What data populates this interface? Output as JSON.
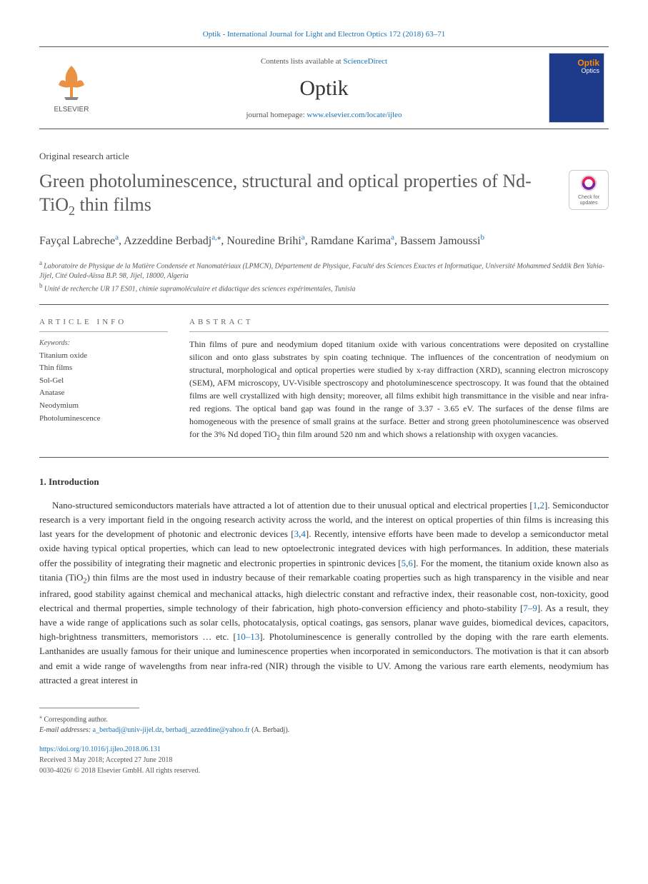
{
  "citation": "Optik - International Journal for Light and Electron Optics 172 (2018) 63–71",
  "header": {
    "contents_prefix": "Contents lists available at ",
    "contents_link": "ScienceDirect",
    "journal_name": "Optik",
    "homepage_prefix": "journal homepage: ",
    "homepage_url": "www.elsevier.com/locate/ijleo",
    "publisher_logo_text": "ELSEVIER",
    "cover_title": "Optik",
    "cover_sub": "Optics"
  },
  "article_type": "Original research article",
  "title_pre": "Green photoluminescence, structural and optical properties of Nd-TiO",
  "title_sub": "2",
  "title_post": " thin films",
  "check_updates_label": "Check for updates",
  "authors": [
    {
      "name": "Fayçal Labreche",
      "aff": "a"
    },
    {
      "name": "Azzeddine Berbadj",
      "aff": "a",
      "corresponding": true
    },
    {
      "name": "Nouredine Brihi",
      "aff": "a"
    },
    {
      "name": "Ramdane Karima",
      "aff": "a"
    },
    {
      "name": "Bassem Jamoussi",
      "aff": "b"
    }
  ],
  "affiliations": [
    {
      "key": "a",
      "text": "Laboratoire de Physique de la Matière Condensée et Nanomatériaux (LPMCN), Département de Physique, Faculté des Sciences Exactes et Informatique, Université Mohammed Seddik Ben Yahia-Jijel, Cité Ouled-Aïssa B.P. 98, Jijel, 18000, Algeria"
    },
    {
      "key": "b",
      "text": "Unité de recherche UR 17 ES01, chimie supramoléculaire et didactique des sciences expérimentales, Tunisia"
    }
  ],
  "article_info_label": "ARTICLE INFO",
  "abstract_label": "ABSTRACT",
  "keywords_label": "Keywords:",
  "keywords": [
    "Titanium oxide",
    "Thin films",
    "Sol-Gel",
    "Anatase",
    "Neodymium",
    "Photoluminescence"
  ],
  "abstract_html": "Thin films of pure and neodymium doped titanium oxide with various concentrations were deposited on crystalline silicon and onto glass substrates by spin coating technique. The influences of the concentration of neodymium on structural, morphological and optical properties were studied by x-ray diffraction (XRD), scanning electron microscopy (SEM), AFM microscopy, UV-Visible spectroscopy and photoluminescence spectroscopy. It was found that the obtained films are well crystallized with high density; moreover, all films exhibit high transmittance in the visible and near infra-red regions. The optical band gap was found in the range of 3.37 - 3.65 eV. The surfaces of the dense films are homogeneous with the presence of small grains at the surface. Better and strong green photoluminescence was observed for the 3% Nd doped TiO<sub>2</sub> thin film around 520 nm and which shows a relationship with oxygen vacancies.",
  "introduction": {
    "heading": "1. Introduction",
    "body_spans": [
      {
        "t": "text",
        "v": "Nano-structured semiconductors materials have attracted a lot of attention due to their unusual optical and electrical properties ["
      },
      {
        "t": "ref",
        "v": "1"
      },
      {
        "t": "text",
        "v": ","
      },
      {
        "t": "ref",
        "v": "2"
      },
      {
        "t": "text",
        "v": "]. Semiconductor research is a very important field in the ongoing research activity across the world, and the interest on optical properties of thin films is increasing this last years for the development of photonic and electronic devices ["
      },
      {
        "t": "ref",
        "v": "3"
      },
      {
        "t": "text",
        "v": ","
      },
      {
        "t": "ref",
        "v": "4"
      },
      {
        "t": "text",
        "v": "]. Recently, intensive efforts have been made to develop a semiconductor metal oxide having typical optical properties, which can lead to new optoelectronic integrated devices with high performances. In addition, these materials offer the possibility of integrating their magnetic and electronic properties in spintronic devices ["
      },
      {
        "t": "ref",
        "v": "5"
      },
      {
        "t": "text",
        "v": ","
      },
      {
        "t": "ref",
        "v": "6"
      },
      {
        "t": "text",
        "v": "]. For the moment, the titanium oxide known also as titania (TiO"
      },
      {
        "t": "sub",
        "v": "2"
      },
      {
        "t": "text",
        "v": ") thin films are the most used in industry because of their remarkable coating properties such as high transparency in the visible and near infrared, good stability against chemical and mechanical attacks, high dielectric constant and refractive index, their reasonable cost, non-toxicity, good electrical and thermal properties, simple technology of their fabrication, high photo-conversion efficiency and photo-stability ["
      },
      {
        "t": "ref",
        "v": "7–9"
      },
      {
        "t": "text",
        "v": "]. As a result, they have a wide range of applications such as solar cells, photocatalysis, optical coatings, gas sensors, planar wave guides, biomedical devices, capacitors, high-brightness transmitters, memoristors … etc. ["
      },
      {
        "t": "ref",
        "v": "10–13"
      },
      {
        "t": "text",
        "v": "]. Photoluminescence is generally controlled by the doping with the rare earth elements. Lanthanides are usually famous for their unique and luminescence properties when incorporated in semiconductors. The motivation is that it can absorb and emit a wide range of wavelengths from near infra-red (NIR) through the visible to UV. Among the various rare earth elements, neodymium has attracted a great interest in"
      }
    ]
  },
  "footnotes": {
    "corresponding_label": "Corresponding author.",
    "email_label": "E-mail addresses:",
    "emails": [
      "a_berbadj@univ-jijel.dz",
      "berbadj_azzeddine@yahoo.fr"
    ],
    "email_author": "(A. Berbadj)."
  },
  "footer": {
    "doi": "https://doi.org/10.1016/j.ijleo.2018.06.131",
    "received": "Received 3 May 2018; Accepted 27 June 2018",
    "issn_copyright": "0030-4026/ © 2018 Elsevier GmbH. All rights reserved."
  },
  "colors": {
    "link": "#1a72b8",
    "text": "#333333",
    "muted": "#555555",
    "rule": "#555555",
    "cover_bg": "#1e3a8a",
    "cover_title": "#ff8c00"
  }
}
